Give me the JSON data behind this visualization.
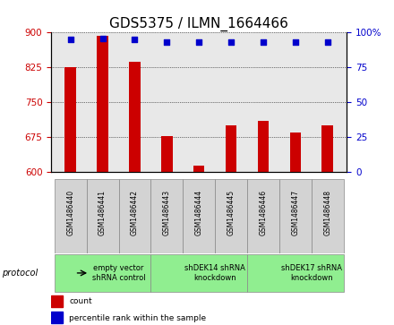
{
  "title": "GDS5375 / ILMN_1664466",
  "samples": [
    "GSM1486440",
    "GSM1486441",
    "GSM1486442",
    "GSM1486443",
    "GSM1486444",
    "GSM1486445",
    "GSM1486446",
    "GSM1486447",
    "GSM1486448"
  ],
  "counts": [
    825,
    893,
    838,
    678,
    614,
    700,
    710,
    685,
    700
  ],
  "percentile_ranks": [
    95,
    96,
    95,
    93,
    93,
    93,
    93,
    93,
    93
  ],
  "ylim_left": [
    600,
    900
  ],
  "ylim_right": [
    0,
    100
  ],
  "yticks_left": [
    600,
    675,
    750,
    825,
    900
  ],
  "yticks_right": [
    0,
    25,
    50,
    75,
    100
  ],
  "bar_color": "#cc0000",
  "dot_color": "#0000cc",
  "groups": [
    {
      "label": "empty vector\nshRNA control",
      "start": 0,
      "end": 3,
      "color": "#90ee90"
    },
    {
      "label": "shDEK14 shRNA\nknockdown",
      "start": 3,
      "end": 6,
      "color": "#90ee90"
    },
    {
      "label": "shDEK17 shRNA\nknockdown",
      "start": 6,
      "end": 9,
      "color": "#90ee90"
    }
  ],
  "legend_items": [
    {
      "label": "count",
      "color": "#cc0000"
    },
    {
      "label": "percentile rank within the sample",
      "color": "#0000cc"
    }
  ],
  "protocol_label": "protocol",
  "background_color": "#ffffff",
  "plot_bg_color": "#e8e8e8",
  "grid_color": "#000000",
  "title_fontsize": 11,
  "tick_fontsize": 7.5,
  "bar_width": 0.35
}
